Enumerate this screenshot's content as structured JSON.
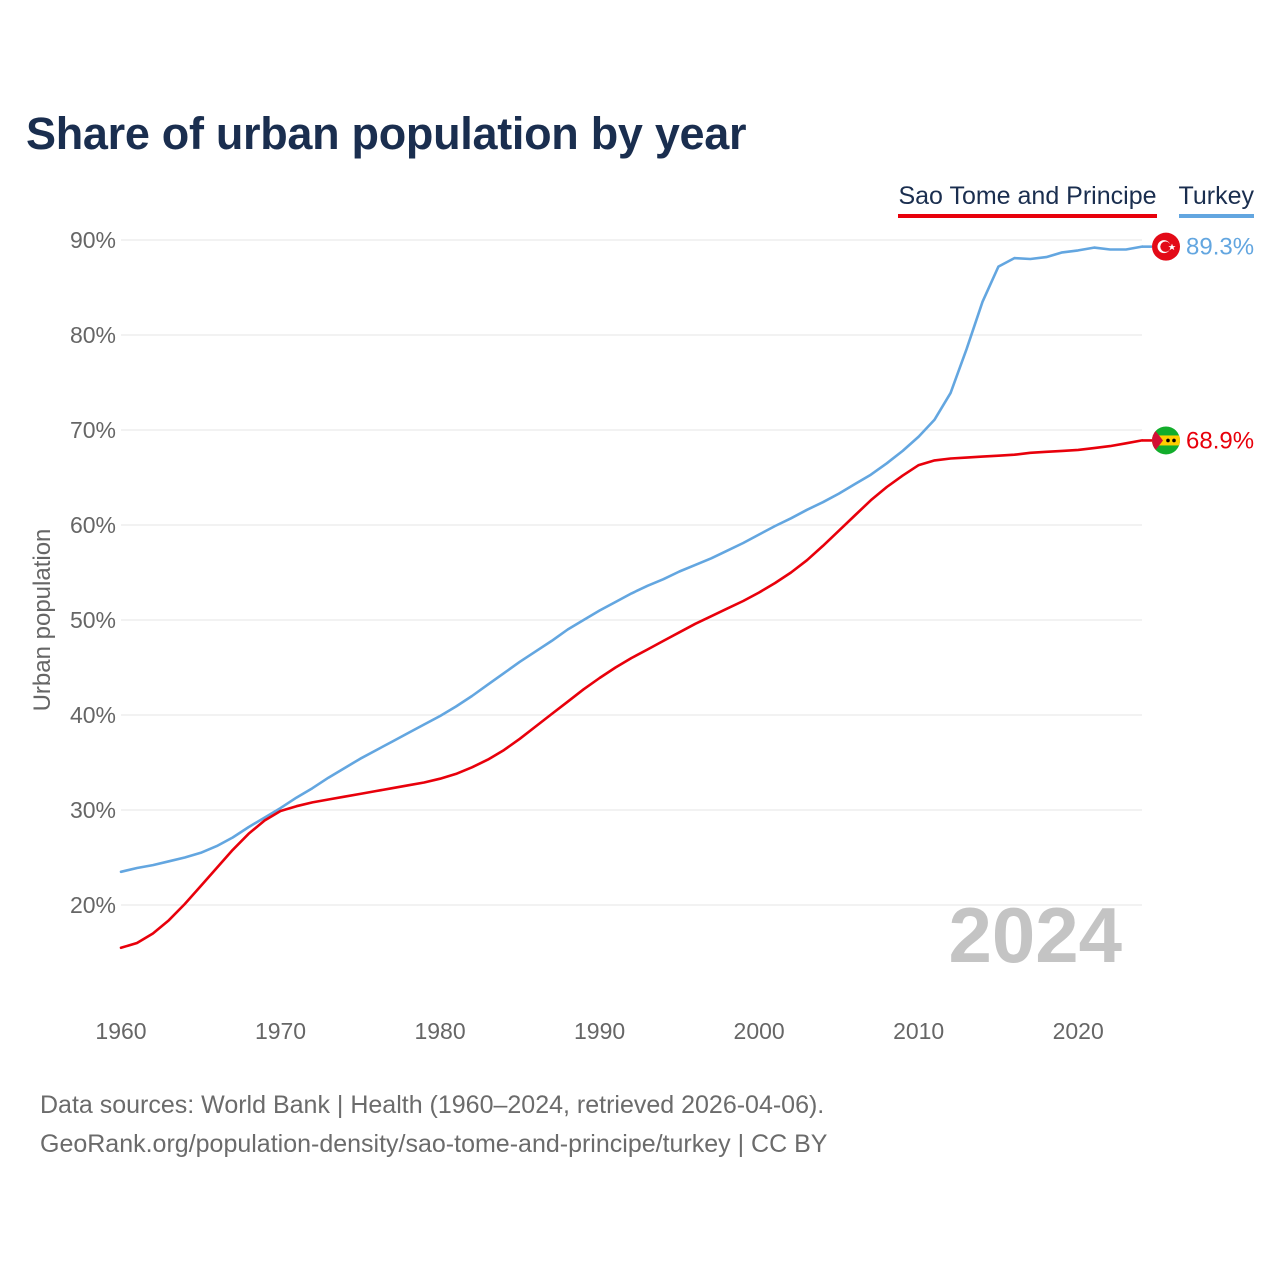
{
  "title": "Share of urban population by year",
  "legend": [
    {
      "name": "Sao Tome and Principe",
      "color": "#e8000b"
    },
    {
      "name": "Turkey",
      "color": "#63a6e0"
    }
  ],
  "year_watermark": "2024",
  "footer": {
    "line1": "Data sources: World Bank | Health (1960–2024, retrieved 2026-04-06).",
    "line2": "GeoRank.org/population-density/sao-tome-and-principe/turkey | CC BY"
  },
  "flags": [
    {
      "country": "Turkey",
      "icon": "turkey-flag-icon"
    },
    {
      "country": "Sao Tome and Principe",
      "icon": "sao-tome-flag-icon"
    }
  ],
  "chart_data": {
    "type": "line",
    "title": "Share of urban population by year",
    "xlabel": "",
    "ylabel": "Urban population",
    "xlim": [
      1960,
      2024
    ],
    "ylim": [
      10,
      90
    ],
    "x_ticks": [
      "1960",
      "1970",
      "1980",
      "1990",
      "2000",
      "2010",
      "2020"
    ],
    "y_ticks": [
      "20%",
      "30%",
      "40%",
      "50%",
      "60%",
      "70%",
      "80%",
      "90%"
    ],
    "x": [
      1960,
      1961,
      1962,
      1963,
      1964,
      1965,
      1966,
      1967,
      1968,
      1969,
      1970,
      1971,
      1972,
      1973,
      1974,
      1975,
      1976,
      1977,
      1978,
      1979,
      1980,
      1981,
      1982,
      1983,
      1984,
      1985,
      1986,
      1987,
      1988,
      1989,
      1990,
      1991,
      1992,
      1993,
      1994,
      1995,
      1996,
      1997,
      1998,
      1999,
      2000,
      2001,
      2002,
      2003,
      2004,
      2005,
      2006,
      2007,
      2008,
      2009,
      2010,
      2011,
      2012,
      2013,
      2014,
      2015,
      2016,
      2017,
      2018,
      2019,
      2020,
      2021,
      2022,
      2023,
      2024
    ],
    "series": [
      {
        "name": "Turkey",
        "color": "#63a6e0",
        "end_label": "89.3%",
        "values": [
          23.5,
          23.9,
          24.2,
          24.6,
          25.0,
          25.5,
          26.2,
          27.1,
          28.2,
          29.2,
          30.2,
          31.3,
          32.3,
          33.4,
          34.4,
          35.4,
          36.3,
          37.2,
          38.1,
          39.0,
          39.9,
          40.9,
          42.0,
          43.2,
          44.4,
          45.6,
          46.7,
          47.8,
          49.0,
          50.0,
          51.0,
          51.9,
          52.8,
          53.6,
          54.3,
          55.1,
          55.8,
          56.5,
          57.3,
          58.1,
          59.0,
          59.9,
          60.7,
          61.6,
          62.4,
          63.3,
          64.3,
          65.3,
          66.5,
          67.8,
          69.3,
          71.1,
          73.9,
          78.5,
          83.5,
          87.2,
          88.1,
          88.0,
          88.2,
          88.7,
          88.9,
          89.2,
          89.0,
          89.0,
          89.3
        ]
      },
      {
        "name": "Sao Tome and Principe",
        "color": "#e8000b",
        "end_label": "68.9%",
        "values": [
          15.5,
          16.0,
          17.0,
          18.4,
          20.1,
          22.0,
          23.9,
          25.8,
          27.5,
          28.9,
          29.9,
          30.4,
          30.8,
          31.1,
          31.4,
          31.7,
          32.0,
          32.3,
          32.6,
          32.9,
          33.3,
          33.8,
          34.5,
          35.3,
          36.3,
          37.5,
          38.8,
          40.1,
          41.4,
          42.7,
          43.9,
          45.0,
          46.0,
          46.9,
          47.8,
          48.7,
          49.6,
          50.4,
          51.2,
          52.0,
          52.9,
          53.9,
          55.0,
          56.3,
          57.8,
          59.4,
          61.0,
          62.6,
          64.0,
          65.2,
          66.3,
          66.8,
          67.0,
          67.1,
          67.2,
          67.3,
          67.4,
          67.6,
          67.7,
          67.8,
          67.9,
          68.1,
          68.3,
          68.6,
          68.9
        ]
      }
    ]
  }
}
